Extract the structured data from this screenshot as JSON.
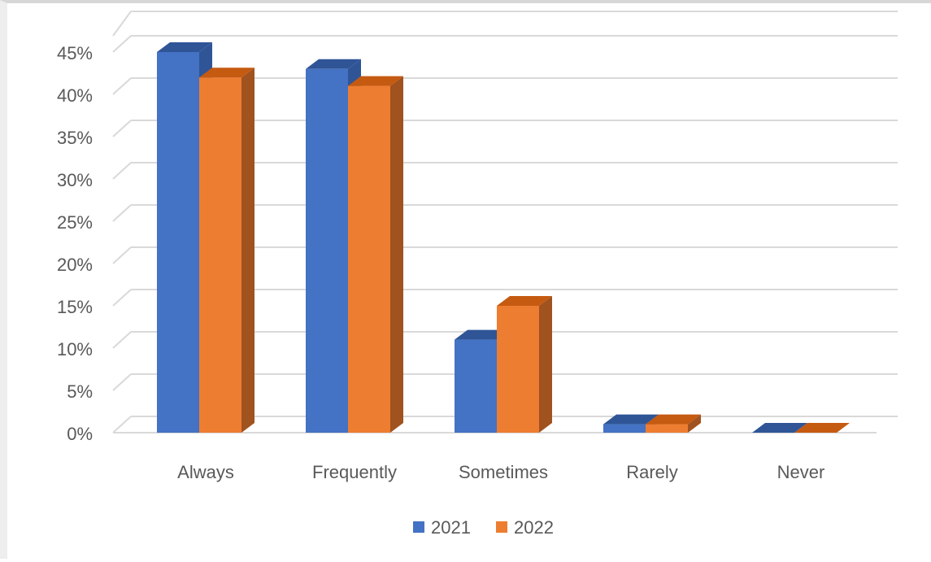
{
  "chart_data": {
    "type": "bar",
    "style": "3d-clustered-column",
    "categories": [
      "Always",
      "Frequently",
      "Sometimes",
      "Rarely",
      "Never"
    ],
    "series": [
      {
        "name": "2021",
        "values": [
          45,
          43,
          11,
          1,
          0
        ],
        "color": "#4472C4",
        "side_color": "#2F5597",
        "top_color": "#2F5597"
      },
      {
        "name": "2022",
        "values": [
          42,
          41,
          15,
          1,
          0
        ],
        "color": "#ED7D31",
        "side_color": "#A0521F",
        "top_color": "#C55A11"
      }
    ],
    "yticks": [
      "0%",
      "5%",
      "10%",
      "15%",
      "20%",
      "25%",
      "30%",
      "35%",
      "40%",
      "45%"
    ],
    "ylim": [
      0,
      45
    ],
    "grid": true,
    "legend_position": "bottom",
    "title": "",
    "xlabel": "",
    "ylabel": ""
  }
}
